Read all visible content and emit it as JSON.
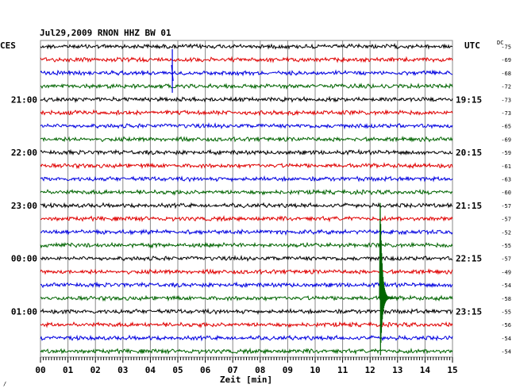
{
  "chart_data": {
    "type": "line",
    "title": "Jul29,2009   RNON HHZ BW 01",
    "left_zone_label": "CES",
    "right_zone_label": "UTC",
    "dc_label": "DC",
    "xlabel": "Zeit [min]",
    "x_ticks": [
      "00",
      "01",
      "02",
      "03",
      "04",
      "05",
      "06",
      "07",
      "08",
      "09",
      "10",
      "11",
      "12",
      "13",
      "14",
      "15"
    ],
    "xlim": [
      0,
      15
    ],
    "grid": true,
    "left_hour_labels": [
      {
        "trace": 4,
        "text": "21:00"
      },
      {
        "trace": 8,
        "text": "22:00"
      },
      {
        "trace": 12,
        "text": "23:00"
      },
      {
        "trace": 16,
        "text": "00:00"
      },
      {
        "trace": 20,
        "text": "01:00"
      }
    ],
    "right_hour_labels": [
      {
        "trace": 4,
        "text": "19:15"
      },
      {
        "trace": 8,
        "text": "20:15"
      },
      {
        "trace": 12,
        "text": "21:15"
      },
      {
        "trace": 16,
        "text": "22:15"
      },
      {
        "trace": 20,
        "text": "23:15"
      }
    ],
    "trace_colors": [
      "#000000",
      "#e00000",
      "#0000e0",
      "#006400"
    ],
    "dc_offsets": [
      -75,
      -69,
      -68,
      -72,
      -73,
      -73,
      -65,
      -69,
      -59,
      -61,
      -63,
      -60,
      -57,
      -57,
      -52,
      -55,
      -57,
      -49,
      -54,
      -58,
      -55,
      -56,
      -54,
      -54
    ],
    "events": [
      {
        "trace": 2,
        "minute": 4.8,
        "amplitude": "small"
      },
      {
        "trace": 19,
        "minute": 12.4,
        "amplitude": "large"
      }
    ],
    "footer_mark": "∕"
  }
}
